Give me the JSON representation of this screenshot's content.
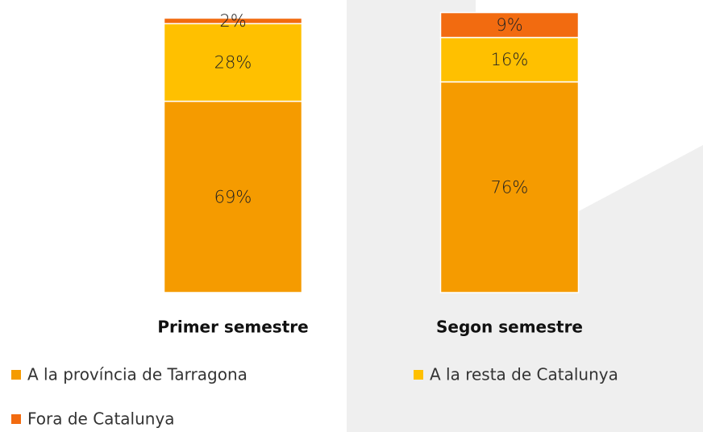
{
  "chart_data": {
    "type": "stacked_bar",
    "categories": [
      "Primer semestre",
      "Segon semestre"
    ],
    "series": [
      {
        "name": "A la província de Tarragona",
        "color": "#f59b00",
        "values": [
          69,
          76
        ],
        "value_labels": [
          "69%",
          "76%"
        ]
      },
      {
        "name": "A la resta de Catalunya",
        "color": "#ffc000",
        "values": [
          28,
          16
        ],
        "value_labels": [
          "28%",
          "16%"
        ]
      },
      {
        "name": "Fora de Catalunya",
        "color": "#f26b10",
        "values": [
          2,
          9
        ],
        "value_labels": [
          "2%",
          "9%"
        ]
      }
    ],
    "ylim": [
      0,
      100
    ]
  }
}
